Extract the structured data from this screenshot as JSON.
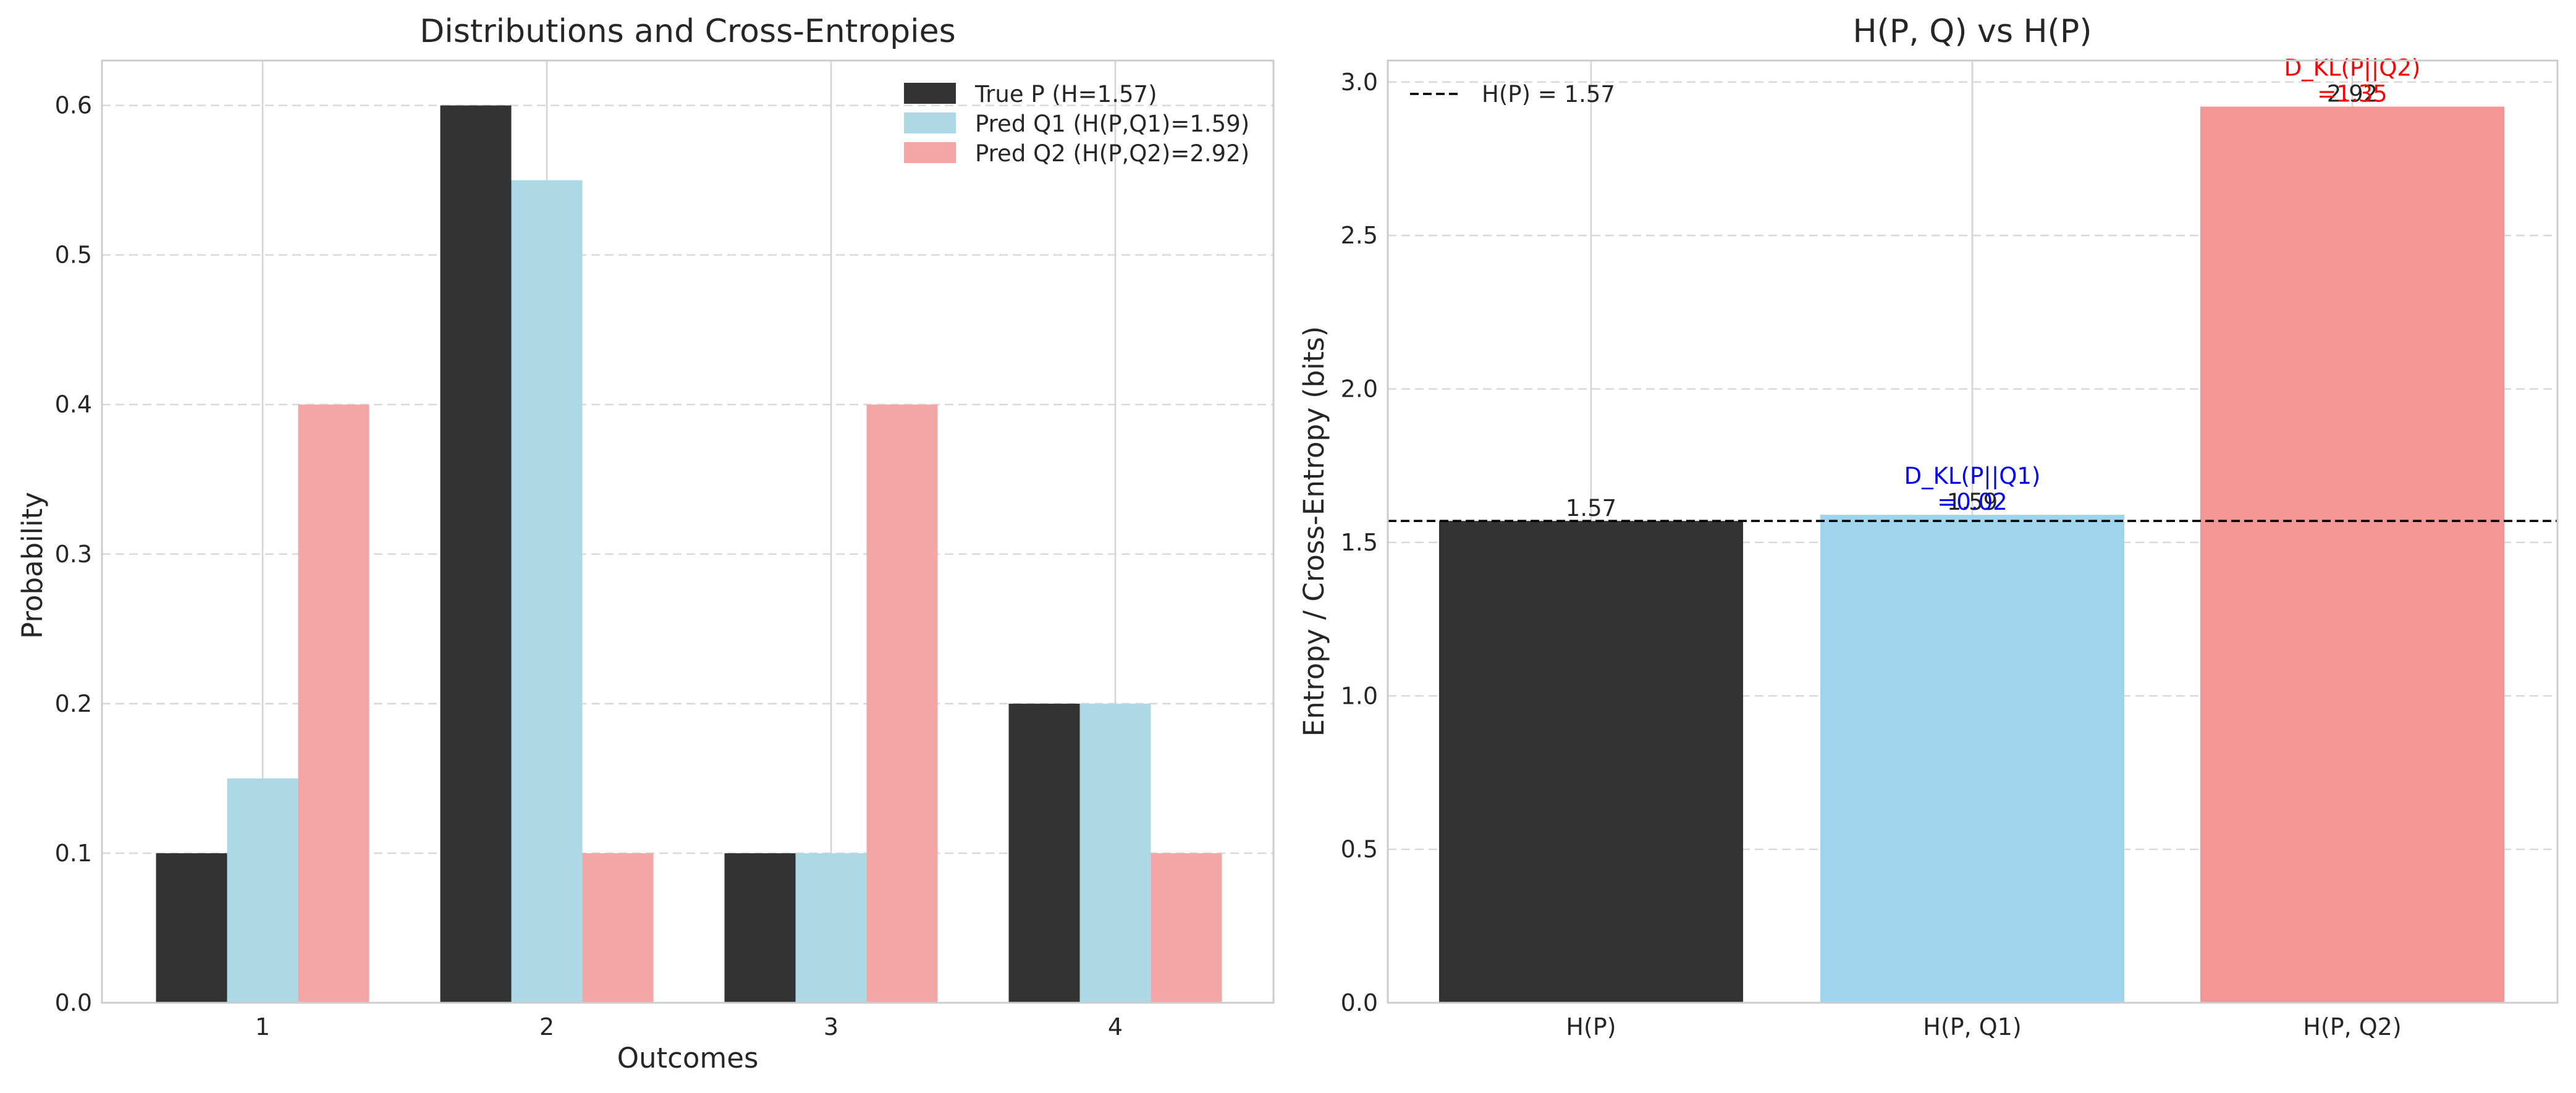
{
  "chart_data": [
    {
      "type": "bar",
      "title": "Distributions and Cross-Entropies",
      "xlabel": "Outcomes",
      "ylabel": "Probability",
      "categories": [
        "1",
        "2",
        "3",
        "4"
      ],
      "ylim": [
        0,
        0.63
      ],
      "yticks": [
        0.0,
        0.1,
        0.2,
        0.3,
        0.4,
        0.5,
        0.6
      ],
      "ytick_labels": [
        "0.0",
        "0.1",
        "0.2",
        "0.3",
        "0.4",
        "0.5",
        "0.6"
      ],
      "grid": true,
      "legend_position": "top-right",
      "series": [
        {
          "name": "True P (H=1.57)",
          "values": [
            0.1,
            0.6,
            0.1,
            0.2
          ],
          "color": "#333333"
        },
        {
          "name": "Pred Q1 (H(P,Q1)=1.59)",
          "values": [
            0.15,
            0.55,
            0.1,
            0.2
          ],
          "color": "#add8e6"
        },
        {
          "name": "Pred Q2 (H(P,Q2)=2.92)",
          "values": [
            0.4,
            0.1,
            0.4,
            0.1
          ],
          "color": "#f4a6a6"
        }
      ]
    },
    {
      "type": "bar",
      "title": "H(P, Q) vs H(P)",
      "xlabel": "",
      "ylabel": "Entropy / Cross-Entropy (bits)",
      "categories": [
        "H(P)",
        "H(P, Q1)",
        "H(P, Q2)"
      ],
      "values": [
        1.57,
        1.59,
        2.92
      ],
      "value_labels": [
        "1.57",
        "1.59",
        "2.92"
      ],
      "colors": [
        "#333333",
        "#9ed5ec",
        "#f29796"
      ],
      "ylim": [
        0,
        3.07
      ],
      "yticks": [
        0.0,
        0.5,
        1.0,
        1.5,
        2.0,
        2.5,
        3.0
      ],
      "ytick_labels": [
        "0.0",
        "0.5",
        "1.0",
        "1.5",
        "2.0",
        "2.5",
        "3.0"
      ],
      "grid": true,
      "reference_line": {
        "value": 1.57,
        "label": "H(P) = 1.57",
        "style": "dashed",
        "color": "#000000"
      },
      "legend_position": "top-left",
      "annotations": [
        {
          "category": "H(P, Q1)",
          "line1": "D_KL(P||Q1)",
          "line2": "=0.02",
          "color": "#0000ff"
        },
        {
          "category": "H(P, Q2)",
          "line1": "D_KL(P||Q2)",
          "line2": "=1.35",
          "color": "#ff0000"
        }
      ]
    }
  ]
}
